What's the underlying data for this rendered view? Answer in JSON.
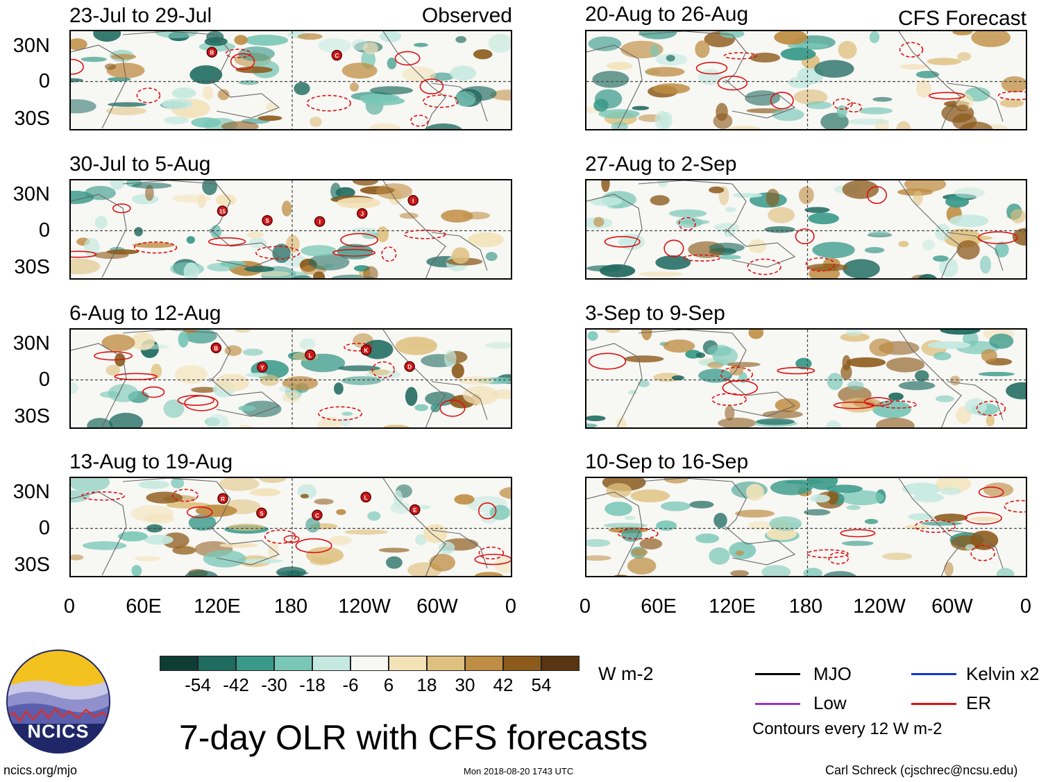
{
  "panels": {
    "left": [
      {
        "title": "23-Jul to 29-Jul",
        "tag": "Observed"
      },
      {
        "title": "30-Jul to 5-Aug",
        "tag": ""
      },
      {
        "title": "6-Aug to 12-Aug",
        "tag": ""
      },
      {
        "title": "13-Aug to 19-Aug",
        "tag": ""
      }
    ],
    "right": [
      {
        "title": "20-Aug to 26-Aug",
        "tag": "CFS Forecast"
      },
      {
        "title": "27-Aug to 2-Sep",
        "tag": ""
      },
      {
        "title": "3-Sep to 9-Sep",
        "tag": ""
      },
      {
        "title": "10-Sep to 16-Sep",
        "tag": ""
      }
    ]
  },
  "lat_labels": [
    "30N",
    "0",
    "30S"
  ],
  "lon_labels": [
    "0",
    "60E",
    "120E",
    "180",
    "120W",
    "60W",
    "0"
  ],
  "storm_markers": {
    "p0": [
      "B",
      "C"
    ],
    "p1": [
      "15",
      "S",
      "I",
      "J",
      "I"
    ],
    "p2": [
      "B",
      "Y",
      "L",
      "K",
      "D"
    ],
    "p3": [
      "R",
      "S",
      "C",
      "L",
      "E"
    ]
  },
  "colorbar": {
    "colors": [
      "#0f3d35",
      "#1f6b60",
      "#3a9a8a",
      "#79c7b7",
      "#c5e9e0",
      "#f7f7f4",
      "#f3e2b8",
      "#dfc17f",
      "#bf8d43",
      "#8c5a1b",
      "#5a3511"
    ],
    "labels": [
      "-54",
      "-42",
      "-30",
      "-18",
      "-6",
      "6",
      "18",
      "30",
      "42",
      "54"
    ],
    "units": "W m-2"
  },
  "legend": {
    "items": [
      {
        "label": "MJO",
        "color": "#000000"
      },
      {
        "label": "Kelvin x2",
        "color": "#1133cc"
      },
      {
        "label": "Low",
        "color": "#9933cc"
      },
      {
        "label": "ER",
        "color": "#dd1111"
      }
    ],
    "note": "Contours every 12 W m-2"
  },
  "logo": {
    "text": "NCICS"
  },
  "main_title": "7-day OLR with CFS forecasts",
  "footer": {
    "left": "ncics.org/mjo",
    "center": "Mon 2018-08-20 1743 UTC",
    "right": "Carl Schreck (cjschrec@ncsu.edu)"
  }
}
